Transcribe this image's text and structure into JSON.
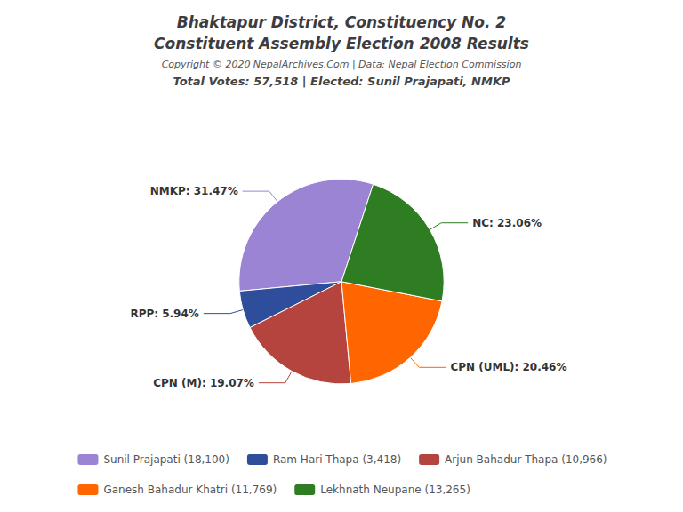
{
  "chart_data": {
    "type": "pie",
    "title": "Bhaktapur District, Constituency No. 2\nConstituent Assembly Election 2008 Results",
    "annotations": [
      "Copyright © 2020 NepalArchives.Com | Data: Nepal Election Commission"
    ],
    "subtitle": "Total Votes: 57,518 | Elected: Sunil Prajapati, NMKP",
    "categories": [
      "Sunil Prajapati (18,100)",
      "Ram Hari Thapa (3,418)",
      "Arjun Bahadur Thapa (10,966)",
      "Ganesh Bahadur Khatri (11,769)",
      "Lekhnath Neupane (13,265)"
    ],
    "values": [
      31.47,
      5.94,
      19.07,
      20.46,
      23.06
    ],
    "value_labels": [
      "NMKP: 31.47%",
      "RPP: 5.94%",
      "CPN (M): 19.07%",
      "CPN (UML): 20.46%",
      "NC: 23.06%"
    ],
    "colors": [
      "#9b84d4",
      "#2e4d9b",
      "#b5443e",
      "#ff6600",
      "#2e7d22"
    ],
    "data_labels": true,
    "legend": "bottom"
  }
}
